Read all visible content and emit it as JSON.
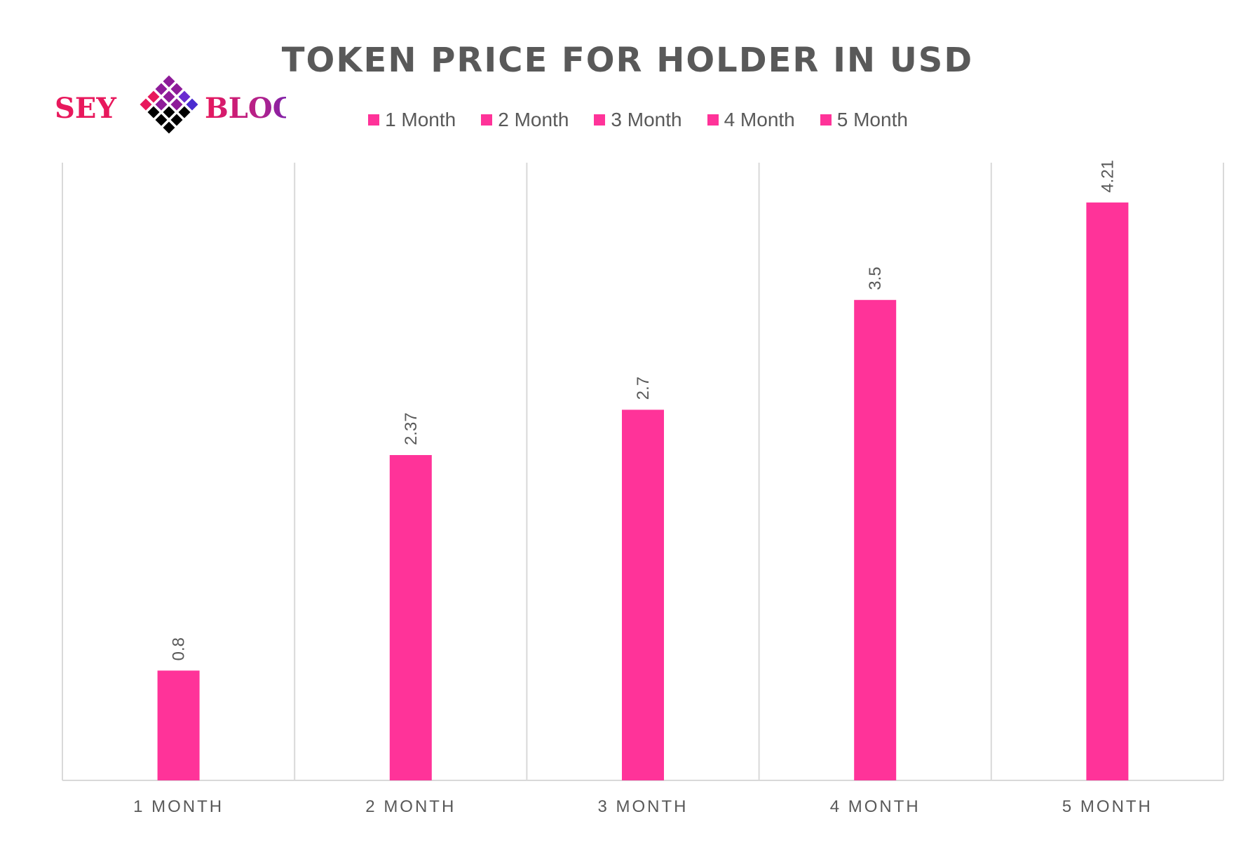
{
  "logo": {
    "text_left": "SEY",
    "text_right": "BLOCK"
  },
  "chart_data": {
    "type": "bar",
    "title": "TOKEN PRICE FOR HOLDER IN USD",
    "categories": [
      "1 MONTH",
      "2 MONTH",
      "3 MONTH",
      "4 MONTH",
      "5 MONTH"
    ],
    "values": [
      0.8,
      2.37,
      2.7,
      3.5,
      4.21
    ],
    "data_labels": [
      "0.8",
      "2.37",
      "2.7",
      "3.5",
      "4.21"
    ],
    "legend": [
      "1 Month",
      "2 Month",
      "3 Month",
      "4 Month",
      "5 Month"
    ],
    "legend_position": "top",
    "ylim": [
      0,
      4.5
    ],
    "y_axis_visible": false,
    "grid": "vertical category separators",
    "bar_color": "#FF3399",
    "xlabel": "",
    "ylabel": ""
  }
}
